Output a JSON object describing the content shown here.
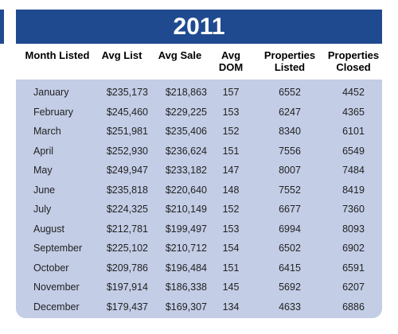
{
  "table": {
    "title": "2011",
    "headers": [
      "Month Listed",
      "Avg List",
      "Avg Sale",
      "Avg DOM",
      "Properties Listed",
      "Properties Closed"
    ],
    "rows": [
      [
        "January",
        "$235,173",
        "$218,863",
        "157",
        "6552",
        "4452"
      ],
      [
        "February",
        "$245,460",
        "$229,225",
        "153",
        "6247",
        "4365"
      ],
      [
        "March",
        "$251,981",
        "$235,406",
        "152",
        "8340",
        "6101"
      ],
      [
        "April",
        "$252,930",
        "$236,624",
        "151",
        "7556",
        "6549"
      ],
      [
        "May",
        "$249,947",
        "$233,182",
        "147",
        "8007",
        "7484"
      ],
      [
        "June",
        "$235,818",
        "$220,640",
        "148",
        "7552",
        "8419"
      ],
      [
        "July",
        "$224,325",
        "$210,149",
        "152",
        "6677",
        "7360"
      ],
      [
        "August",
        "$212,781",
        "$199,497",
        "153",
        "6994",
        "8093"
      ],
      [
        "September",
        "$225,102",
        "$210,712",
        "154",
        "6502",
        "6902"
      ],
      [
        "October",
        "$209,786",
        "$196,484",
        "151",
        "6415",
        "6591"
      ],
      [
        "November",
        "$197,914",
        "$186,338",
        "145",
        "5692",
        "6207"
      ],
      [
        "December",
        "$179,437",
        "$169,307",
        "134",
        "4633",
        "6886"
      ]
    ]
  }
}
